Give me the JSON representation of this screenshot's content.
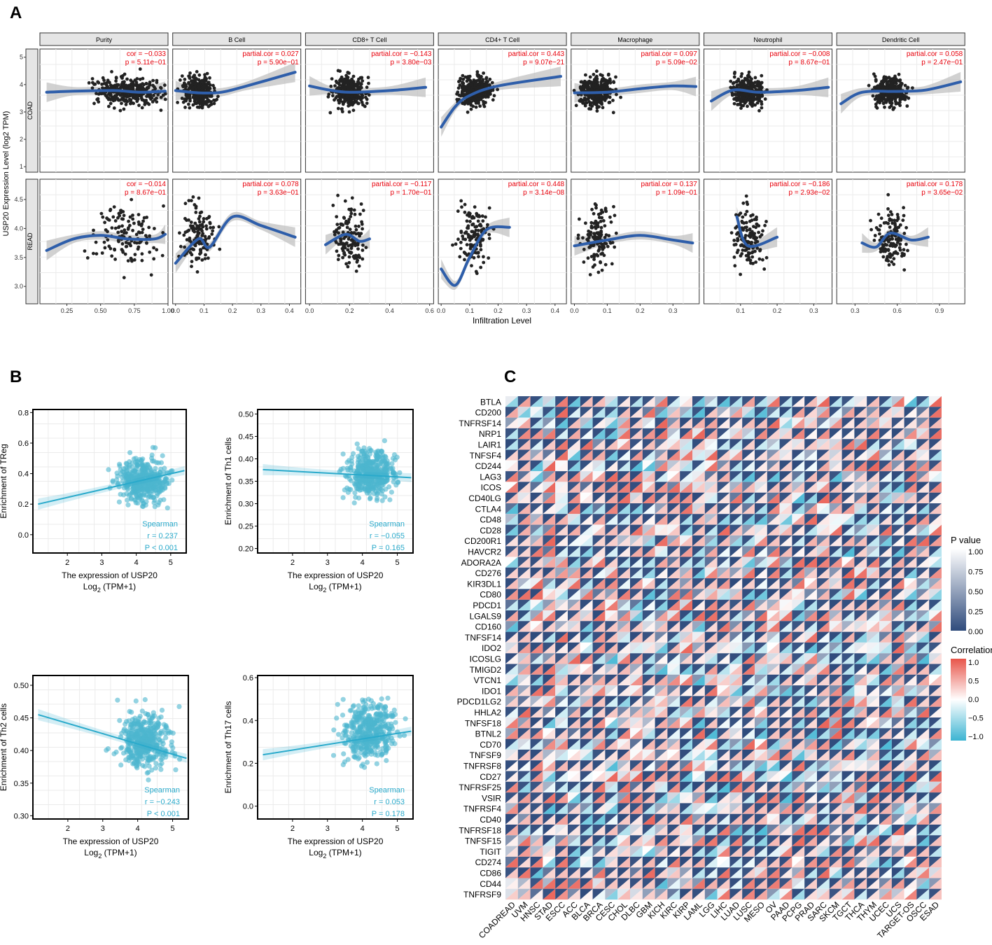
{
  "panel_labels": {
    "a": "A",
    "b": "B",
    "c": "C"
  },
  "colors": {
    "smooth": "#2E5EAA",
    "band": "#BEBEBE",
    "point": "#222222",
    "cor_text": "#E8000B",
    "b_point": "#4DB6CF",
    "b_line": "#2AAACB",
    "strip": "#E5E5E5",
    "heat_neg": "#2F4B7C",
    "p_high": "#FFFFFF",
    "corr_pos": "#E8554A",
    "corr_neg": "#3CB4D2"
  },
  "chart_data": [
    {
      "id": "A",
      "type": "scatter",
      "ylabel": "USP20 Expression Level (log2 TPM)",
      "xlabel": "Infiltration Level",
      "rows": [
        "COAD",
        "READ"
      ],
      "columns": [
        "Purity",
        "B Cell",
        "CD8+ T Cell",
        "CD4+ T Cell",
        "Macrophage",
        "Neutrophil",
        "Dendritic Cell"
      ],
      "row_yticks": [
        [
          "1",
          "2",
          "3",
          "4",
          "5"
        ],
        [
          "3.0",
          "3.5",
          "4.0",
          "4.5"
        ]
      ],
      "row_ylim": [
        [
          0.8,
          5.3
        ],
        [
          2.7,
          4.85
        ]
      ],
      "column_xticks": [
        [
          "0.25",
          "0.50",
          "0.75",
          "1.00"
        ],
        [
          "0.0",
          "0.1",
          "0.2",
          "0.3",
          "0.4"
        ],
        [
          "0.0",
          "0.2",
          "0.4",
          "0.6"
        ],
        [
          "0.0",
          "0.1",
          "0.2",
          "0.3",
          "0.4"
        ],
        [
          "0.0",
          "0.1",
          "0.2",
          "0.3"
        ],
        [
          "0.1",
          "0.2",
          "0.3"
        ],
        [
          "0.3",
          "0.6",
          "0.9"
        ]
      ],
      "column_xlim": [
        [
          0.05,
          1.0
        ],
        [
          -0.01,
          0.44
        ],
        [
          -0.02,
          0.62
        ],
        [
          -0.01,
          0.44
        ],
        [
          -0.01,
          0.38
        ],
        [
          0.0,
          0.35
        ],
        [
          0.17,
          1.08
        ]
      ],
      "column_centers": [
        0.7,
        0.08,
        0.2,
        0.12,
        0.07,
        0.12,
        0.55
      ],
      "annotations": [
        [
          [
            "cor = −0.033",
            "p = 5.11e−01"
          ],
          [
            "partial.cor = 0.027",
            "p = 5.90e−01"
          ],
          [
            "partial.cor = −0.143",
            "p = 3.80e−03"
          ],
          [
            "partial.cor = 0.443",
            "p = 9.07e−21"
          ],
          [
            "partial.cor = 0.097",
            "p = 5.09e−02"
          ],
          [
            "partial.cor = −0.008",
            "p = 8.67e−01"
          ],
          [
            "partial.cor = 0.058",
            "p = 2.47e−01"
          ]
        ],
        [
          [
            "cor = −0.014",
            "p = 8.67e−01"
          ],
          [
            "partial.cor = 0.078",
            "p = 3.63e−01"
          ],
          [
            "partial.cor = −0.117",
            "p = 1.70e−01"
          ],
          [
            "partial.cor = 0.448",
            "p = 3.14e−08"
          ],
          [
            "partial.cor = 0.137",
            "p = 1.09e−01"
          ],
          [
            "partial.cor = −0.186",
            "p = 2.93e−02"
          ],
          [
            "partial.cor = 0.178",
            "p = 3.65e−02"
          ]
        ]
      ],
      "smooth_curves": [
        [
          [
            [
              0.1,
              3.72
            ],
            [
              0.3,
              3.76
            ],
            [
              0.6,
              3.78
            ],
            [
              0.8,
              3.72
            ],
            [
              0.98,
              3.76
            ]
          ],
          [
            [
              0.0,
              3.78
            ],
            [
              0.08,
              3.7
            ],
            [
              0.16,
              3.72
            ],
            [
              0.25,
              3.95
            ],
            [
              0.42,
              4.45
            ]
          ],
          [
            [
              0.0,
              3.95
            ],
            [
              0.1,
              3.8
            ],
            [
              0.2,
              3.72
            ],
            [
              0.4,
              3.78
            ],
            [
              0.58,
              3.9
            ]
          ],
          [
            [
              0.0,
              2.45
            ],
            [
              0.05,
              3.2
            ],
            [
              0.1,
              3.6
            ],
            [
              0.2,
              3.95
            ],
            [
              0.42,
              4.3
            ]
          ],
          [
            [
              0.0,
              3.7
            ],
            [
              0.1,
              3.72
            ],
            [
              0.2,
              3.85
            ],
            [
              0.3,
              3.95
            ],
            [
              0.37,
              3.93
            ]
          ],
          [
            [
              0.02,
              3.4
            ],
            [
              0.08,
              3.8
            ],
            [
              0.15,
              3.72
            ],
            [
              0.25,
              3.78
            ],
            [
              0.34,
              3.9
            ]
          ],
          [
            [
              0.2,
              3.3
            ],
            [
              0.35,
              3.72
            ],
            [
              0.6,
              3.75
            ],
            [
              0.8,
              3.8
            ],
            [
              1.05,
              4.1
            ]
          ]
        ],
        [
          [
            [
              0.1,
              3.62
            ],
            [
              0.3,
              3.82
            ],
            [
              0.5,
              3.88
            ],
            [
              0.7,
              3.82
            ],
            [
              0.9,
              3.82
            ],
            [
              0.98,
              3.9
            ]
          ],
          [
            [
              0.0,
              3.4
            ],
            [
              0.08,
              3.82
            ],
            [
              0.12,
              3.68
            ],
            [
              0.2,
              4.2
            ],
            [
              0.3,
              4.05
            ],
            [
              0.42,
              3.85
            ]
          ],
          [
            [
              0.08,
              3.72
            ],
            [
              0.18,
              3.9
            ],
            [
              0.25,
              3.78
            ],
            [
              0.3,
              3.82
            ]
          ],
          [
            [
              0.0,
              3.3
            ],
            [
              0.05,
              3.02
            ],
            [
              0.1,
              3.5
            ],
            [
              0.16,
              3.98
            ],
            [
              0.24,
              4.02
            ]
          ],
          [
            [
              0.0,
              3.7
            ],
            [
              0.1,
              3.8
            ],
            [
              0.2,
              3.88
            ],
            [
              0.3,
              3.8
            ],
            [
              0.36,
              3.75
            ]
          ],
          [
            [
              0.09,
              4.2
            ],
            [
              0.12,
              3.7
            ],
            [
              0.2,
              3.85
            ]
          ],
          [
            [
              0.35,
              3.75
            ],
            [
              0.45,
              3.68
            ],
            [
              0.55,
              3.92
            ],
            [
              0.7,
              3.8
            ],
            [
              0.82,
              3.85
            ]
          ]
        ]
      ]
    },
    {
      "id": "B",
      "type": "scatter",
      "panels": [
        {
          "ylabel": "Enrichment of TReg",
          "xlabel": "The expression of USP20",
          "xlabel2": "Log",
          "xlabel2_sub": "2",
          "xlabel2_tail": " (TPM+1)",
          "yticks": [
            "0.0",
            "0.2",
            "0.4",
            "0.6",
            "0.8"
          ],
          "ylim": [
            -0.12,
            0.82
          ],
          "xticks": [
            "2",
            "3",
            "4",
            "5"
          ],
          "xlim": [
            1.0,
            5.45
          ],
          "stat": [
            "Spearman",
            "r = 0.237",
            "P < 0.001"
          ],
          "line": [
            [
              1.15,
              0.2
            ],
            [
              5.4,
              0.42
            ]
          ],
          "center": [
            4.2,
            0.36
          ],
          "spread": [
            0.5,
            0.1
          ]
        },
        {
          "ylabel": "Enrichment of Th1 cells",
          "xlabel": "The expression of USP20",
          "xlabel2": "Log",
          "xlabel2_sub": "2",
          "xlabel2_tail": " (TPM+1)",
          "yticks": [
            "0.20",
            "0.25",
            "0.30",
            "0.35",
            "0.40",
            "0.45",
            "0.50"
          ],
          "ylim": [
            0.19,
            0.51
          ],
          "xticks": [
            "2",
            "3",
            "4",
            "5"
          ],
          "xlim": [
            1.0,
            5.45
          ],
          "stat": [
            "Spearman",
            "r = −0.055",
            "P = 0.165"
          ],
          "line": [
            [
              1.15,
              0.376
            ],
            [
              5.4,
              0.358
            ]
          ],
          "center": [
            4.2,
            0.37
          ],
          "spread": [
            0.5,
            0.04
          ]
        },
        {
          "ylabel": "Enrichment of Th2 cells",
          "xlabel": "The expression of USP20",
          "xlabel2": "Log",
          "xlabel2_sub": "2",
          "xlabel2_tail": " (TPM+1)",
          "yticks": [
            "0.30",
            "0.35",
            "0.40",
            "0.45",
            "0.50"
          ],
          "ylim": [
            0.295,
            0.515
          ],
          "xticks": [
            "2",
            "3",
            "4",
            "5"
          ],
          "xlim": [
            1.0,
            5.45
          ],
          "stat": [
            "Spearman",
            "r = −0.243",
            "P < 0.001"
          ],
          "line": [
            [
              1.15,
              0.455
            ],
            [
              5.4,
              0.388
            ]
          ],
          "center": [
            4.2,
            0.415
          ],
          "spread": [
            0.5,
            0.03
          ]
        },
        {
          "ylabel": "Enrichment of Th17 cells",
          "xlabel": "The expression of USP20",
          "xlabel2": "Log",
          "xlabel2_sub": "2",
          "xlabel2_tail": " (TPM+1)",
          "yticks": [
            "0.0",
            "0.2",
            "0.4",
            "0.6"
          ],
          "ylim": [
            -0.06,
            0.61
          ],
          "xticks": [
            "2",
            "3",
            "4",
            "5"
          ],
          "xlim": [
            1.0,
            5.45
          ],
          "stat": [
            "Spearman",
            "r = 0.053",
            "P = 0.178"
          ],
          "line": [
            [
              1.15,
              0.24
            ],
            [
              5.4,
              0.35
            ]
          ],
          "center": [
            4.2,
            0.35
          ],
          "spread": [
            0.5,
            0.1
          ]
        }
      ]
    },
    {
      "id": "C",
      "type": "heatmap",
      "genes": [
        "BTLA",
        "CD200",
        "TNFRSF14",
        "NRP1",
        "LAIR1",
        "TNFSF4",
        "CD244",
        "LAG3",
        "ICOS",
        "CD40LG",
        "CTLA4",
        "CD48",
        "CD28",
        "CD200R1",
        "HAVCR2",
        "ADORA2A",
        "CD276",
        "KIR3DL1",
        "CD80",
        "PDCD1",
        "LGALS9",
        "CD160",
        "TNFSF14",
        "IDO2",
        "ICOSLG",
        "TMIGD2",
        "VTCN1",
        "IDO1",
        "PDCD1LG2",
        "HHLA2",
        "TNFSF18",
        "BTNL2",
        "CD70",
        "TNFSF9",
        "TNFRSF8",
        "CD27",
        "TNFRSF25",
        "VSIR",
        "TNFRSF4",
        "CD40",
        "TNFRSF18",
        "TNFSF15",
        "TIGIT",
        "CD274",
        "CD86",
        "CD44",
        "TNFRSF9"
      ],
      "cancers": [
        "COADREAD",
        "UVM",
        "HNSC",
        "STAD",
        "ESCC",
        "ACC",
        "BLCA",
        "BRCA",
        "CESC",
        "CHOL",
        "DLBC",
        "GBM",
        "KICH",
        "KIRC",
        "KIRP",
        "LAML",
        "LGG",
        "LIHC",
        "LUAD",
        "LUSC",
        "MESO",
        "OV",
        "PAAD",
        "PCPG",
        "PRAD",
        "SARC",
        "SKCM",
        "TGCT",
        "THCA",
        "THYM",
        "UCEC",
        "UCS",
        "TARGET-OS",
        "OSCC",
        "ESAD"
      ],
      "legend_p": {
        "title": "P value",
        "ticks": [
          "1.00",
          "0.75",
          "0.50",
          "0.25",
          "0.00"
        ]
      },
      "legend_corr": {
        "title": "Correlation",
        "ticks": [
          "1.0",
          "0.5",
          "0.0",
          "−0.5",
          "−1.0"
        ]
      }
    }
  ]
}
